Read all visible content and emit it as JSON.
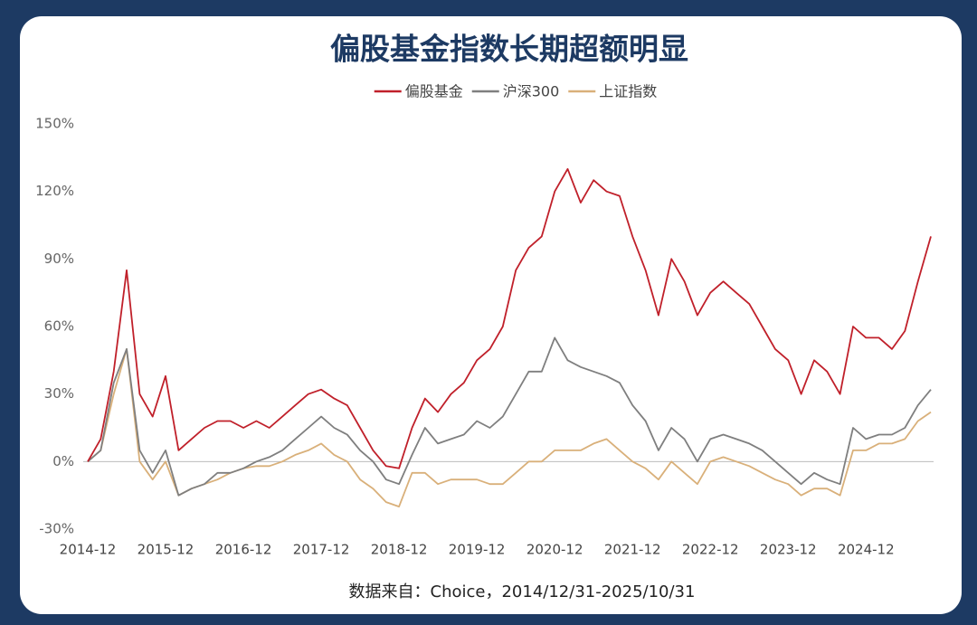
{
  "chart_data": {
    "type": "line",
    "title": "偏股基金指数长期超额明显",
    "source": "数据来自：Choice，2014/12/31-2025/10/31",
    "x": [
      "2014-12",
      "2015-02",
      "2015-04",
      "2015-06",
      "2015-08",
      "2015-10",
      "2015-12",
      "2016-02",
      "2016-04",
      "2016-06",
      "2016-08",
      "2016-10",
      "2016-12",
      "2017-02",
      "2017-04",
      "2017-06",
      "2017-08",
      "2017-10",
      "2017-12",
      "2018-02",
      "2018-04",
      "2018-06",
      "2018-08",
      "2018-10",
      "2018-12",
      "2019-02",
      "2019-04",
      "2019-06",
      "2019-08",
      "2019-10",
      "2019-12",
      "2020-02",
      "2020-04",
      "2020-06",
      "2020-08",
      "2020-10",
      "2020-12",
      "2021-02",
      "2021-04",
      "2021-06",
      "2021-08",
      "2021-10",
      "2021-12",
      "2022-02",
      "2022-04",
      "2022-06",
      "2022-08",
      "2022-10",
      "2022-12",
      "2023-02",
      "2023-04",
      "2023-06",
      "2023-08",
      "2023-10",
      "2023-12",
      "2024-02",
      "2024-04",
      "2024-06",
      "2024-08",
      "2024-10",
      "2024-12",
      "2025-02",
      "2025-04",
      "2025-06",
      "2025-08",
      "2025-10"
    ],
    "xticks": [
      "2014-12",
      "2015-12",
      "2016-12",
      "2017-12",
      "2018-12",
      "2019-12",
      "2020-12",
      "2021-12",
      "2022-12",
      "2023-12",
      "2024-12"
    ],
    "series": [
      {
        "name": "偏股基金",
        "color": "#c0202a",
        "values": [
          0,
          10,
          40,
          85,
          30,
          20,
          38,
          5,
          10,
          15,
          18,
          18,
          15,
          18,
          15,
          20,
          25,
          30,
          32,
          28,
          25,
          15,
          5,
          -2,
          -3,
          15,
          28,
          22,
          30,
          35,
          45,
          50,
          60,
          85,
          95,
          100,
          120,
          130,
          115,
          125,
          120,
          118,
          100,
          85,
          65,
          90,
          80,
          65,
          75,
          80,
          75,
          70,
          60,
          50,
          45,
          30,
          45,
          40,
          30,
          60,
          55,
          55,
          50,
          58,
          80,
          100
        ]
      },
      {
        "name": "沪深300",
        "color": "#7f7f7f",
        "values": [
          0,
          5,
          35,
          50,
          5,
          -5,
          5,
          -15,
          -12,
          -10,
          -5,
          -5,
          -3,
          0,
          2,
          5,
          10,
          15,
          20,
          15,
          12,
          5,
          0,
          -8,
          -10,
          3,
          15,
          8,
          10,
          12,
          18,
          15,
          20,
          30,
          40,
          40,
          55,
          45,
          42,
          40,
          38,
          35,
          25,
          18,
          5,
          15,
          10,
          0,
          10,
          12,
          10,
          8,
          5,
          0,
          -5,
          -10,
          -5,
          -8,
          -10,
          15,
          10,
          12,
          12,
          15,
          25,
          32
        ]
      },
      {
        "name": "上证指数",
        "color": "#d9b07a",
        "values": [
          0,
          5,
          30,
          50,
          0,
          -8,
          0,
          -15,
          -12,
          -10,
          -8,
          -5,
          -3,
          -2,
          -2,
          0,
          3,
          5,
          8,
          3,
          0,
          -8,
          -12,
          -18,
          -20,
          -5,
          -5,
          -10,
          -8,
          -8,
          -8,
          -10,
          -10,
          -5,
          0,
          0,
          5,
          5,
          5,
          8,
          10,
          5,
          0,
          -3,
          -8,
          0,
          -5,
          -10,
          0,
          2,
          0,
          -2,
          -5,
          -8,
          -10,
          -15,
          -12,
          -12,
          -15,
          5,
          5,
          8,
          8,
          10,
          18,
          22
        ]
      }
    ],
    "ylim": [
      -30,
      150
    ],
    "yticks": [
      {
        "value": -30,
        "label": "-30%"
      },
      {
        "value": 0,
        "label": "0%"
      },
      {
        "value": 30,
        "label": "30%"
      },
      {
        "value": 60,
        "label": "60%"
      },
      {
        "value": 90,
        "label": "90%"
      },
      {
        "value": 120,
        "label": "120%"
      },
      {
        "value": 150,
        "label": "150%"
      }
    ],
    "legend": "top"
  }
}
